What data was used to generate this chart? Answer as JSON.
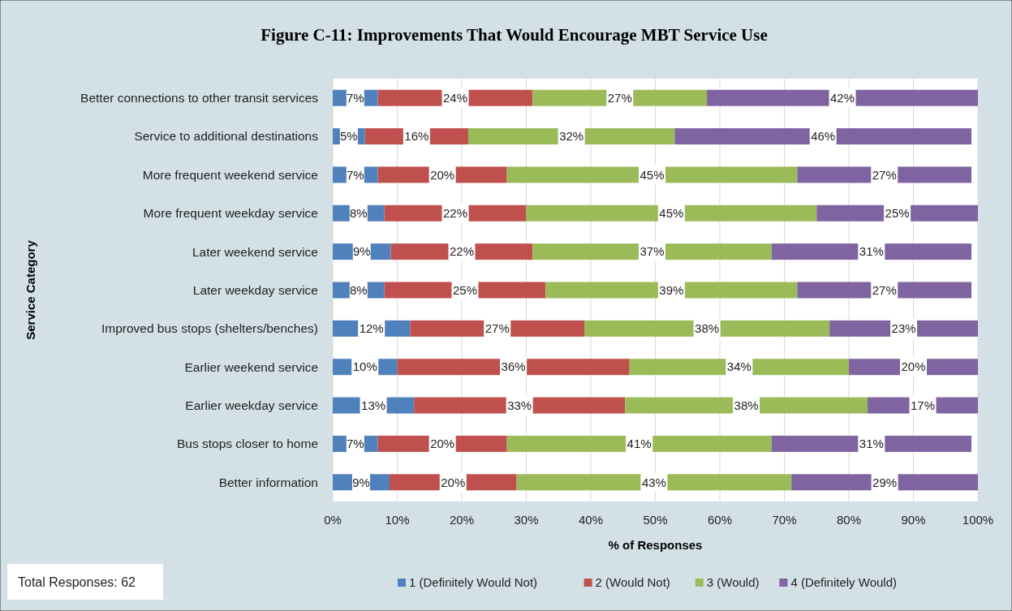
{
  "chart_data": {
    "type": "bar",
    "orientation": "horizontal",
    "stacked": true,
    "title": "Figure C-11: Improvements That Would Encourage MBT Service Use",
    "xlabel": "% of Responses",
    "ylabel": "Service Category",
    "categories": [
      "Better connections to other transit services",
      "Service to additional destinations",
      "More frequent weekend service",
      "More frequent weekday service",
      "Later weekend service",
      "Later weekday service",
      "Improved bus stops (shelters/benches)",
      "Earlier weekend service",
      "Earlier weekday service",
      "Bus stops closer to home",
      "Better information"
    ],
    "series": [
      {
        "name": "1 (Definitely Would Not)",
        "color": "#4f81bd",
        "values": [
          7,
          5,
          7,
          8,
          9,
          8,
          12,
          10,
          12.6,
          7,
          8.8
        ],
        "value_labels": [
          "7%",
          "5%",
          "7%",
          "8%",
          "9%",
          "8%",
          "12%",
          "10%",
          "13%",
          "7%",
          "9%"
        ]
      },
      {
        "name": "2 (Would Not)",
        "color": "#c0504d",
        "values": [
          24,
          16,
          20,
          22,
          22,
          25,
          27,
          36,
          32.7,
          20,
          19.7
        ],
        "value_labels": [
          "24%",
          "16%",
          "20%",
          "22%",
          "22%",
          "25%",
          "27%",
          "36%",
          "33%",
          "20%",
          "20%"
        ]
      },
      {
        "name": "3 (Would)",
        "color": "#9bbb59",
        "values": [
          27,
          32,
          45,
          45,
          37,
          39,
          38,
          34,
          37.6,
          41,
          42.6
        ],
        "value_labels": [
          "27%",
          "32%",
          "45%",
          "45%",
          "37%",
          "39%",
          "38%",
          "34%",
          "38%",
          "41%",
          "43%"
        ]
      },
      {
        "name": "4 (Definitely Would)",
        "color": "#8064a2",
        "values": [
          42,
          46,
          27,
          25,
          31,
          27,
          23,
          20,
          17.1,
          31,
          28.9
        ],
        "value_labels": [
          "42%",
          "46%",
          "27%",
          "25%",
          "31%",
          "27%",
          "23%",
          "20%",
          "17%",
          "31%",
          "29%"
        ]
      }
    ],
    "xlim": [
      0,
      100
    ],
    "xticks": [
      {
        "value": 0,
        "label": "0%"
      },
      {
        "value": 10,
        "label": "10%"
      },
      {
        "value": 20,
        "label": "20%"
      },
      {
        "value": 30,
        "label": "30%"
      },
      {
        "value": 40,
        "label": "40%"
      },
      {
        "value": 50,
        "label": "50%"
      },
      {
        "value": 60,
        "label": "60%"
      },
      {
        "value": 70,
        "label": "70%"
      },
      {
        "value": 80,
        "label": "80%"
      },
      {
        "value": 90,
        "label": "90%"
      },
      {
        "value": 100,
        "label": "100%"
      }
    ],
    "grid": "x",
    "legend": "bottom",
    "annotations": [
      "Total Responses: 62"
    ]
  }
}
